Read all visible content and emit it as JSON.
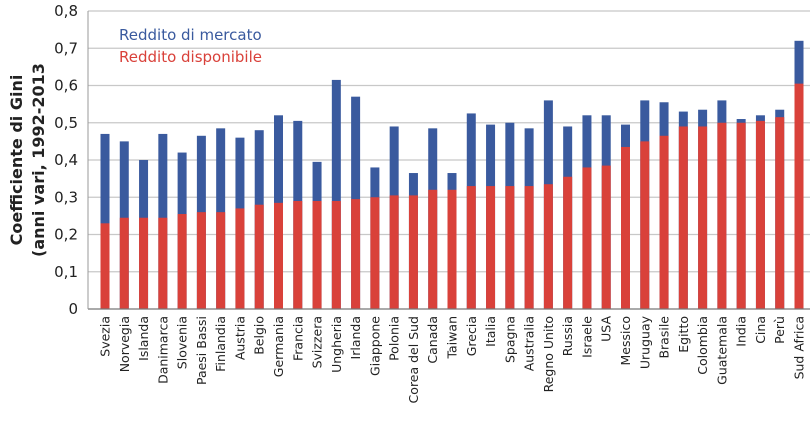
{
  "chart_data": {
    "type": "bar",
    "stacked": "overlay",
    "ylabel_lines": [
      "Coefficiente di Gini",
      "(anni vari, 1992-2013"
    ],
    "ylim": [
      0,
      0.8
    ],
    "yticks": [
      "0",
      "0,1",
      "0,2",
      "0,3",
      "0,4",
      "0,5",
      "0,6",
      "0,7",
      "0,8"
    ],
    "grid": true,
    "legend_placement": "top-left",
    "categories": [
      "Svezia",
      "Norvegia",
      "Islanda",
      "Danimarca",
      "Slovenia",
      "Paesi Bassi",
      "Finlandia",
      "Austria",
      "Belgio",
      "Germania",
      "Francia",
      "Svizzera",
      "Ungheria",
      "Irlanda",
      "Giappone",
      "Polonia",
      "Corea del Sud",
      "Canada",
      "Taiwan",
      "Grecia",
      "Italia",
      "Spagna",
      "Australia",
      "Regno Unito",
      "Russia",
      "Israele",
      "USA",
      "Messico",
      "Uruguay",
      "Brasile",
      "Egitto",
      "Colombia",
      "Guatemala",
      "India",
      "Cina",
      "Perù",
      "Sud Africa"
    ],
    "series": [
      {
        "name": "Reddito di mercato",
        "color": "#3a5a9e",
        "values": [
          0.47,
          0.45,
          0.4,
          0.47,
          0.42,
          0.465,
          0.485,
          0.46,
          0.48,
          0.52,
          0.505,
          0.395,
          0.615,
          0.57,
          0.38,
          0.49,
          0.365,
          0.485,
          0.365,
          0.525,
          0.495,
          0.5,
          0.485,
          0.56,
          0.49,
          0.52,
          0.52,
          0.495,
          0.56,
          0.555,
          0.53,
          0.535,
          0.56,
          0.51,
          0.52,
          0.535,
          0.72
        ]
      },
      {
        "name": "Reddito disponibile",
        "color": "#d9413a",
        "values": [
          0.23,
          0.245,
          0.245,
          0.245,
          0.255,
          0.26,
          0.26,
          0.27,
          0.28,
          0.285,
          0.29,
          0.29,
          0.29,
          0.295,
          0.3,
          0.305,
          0.305,
          0.32,
          0.32,
          0.33,
          0.33,
          0.33,
          0.33,
          0.335,
          0.355,
          0.38,
          0.385,
          0.435,
          0.45,
          0.465,
          0.49,
          0.49,
          0.5,
          0.5,
          0.505,
          0.515,
          0.605
        ]
      }
    ]
  }
}
